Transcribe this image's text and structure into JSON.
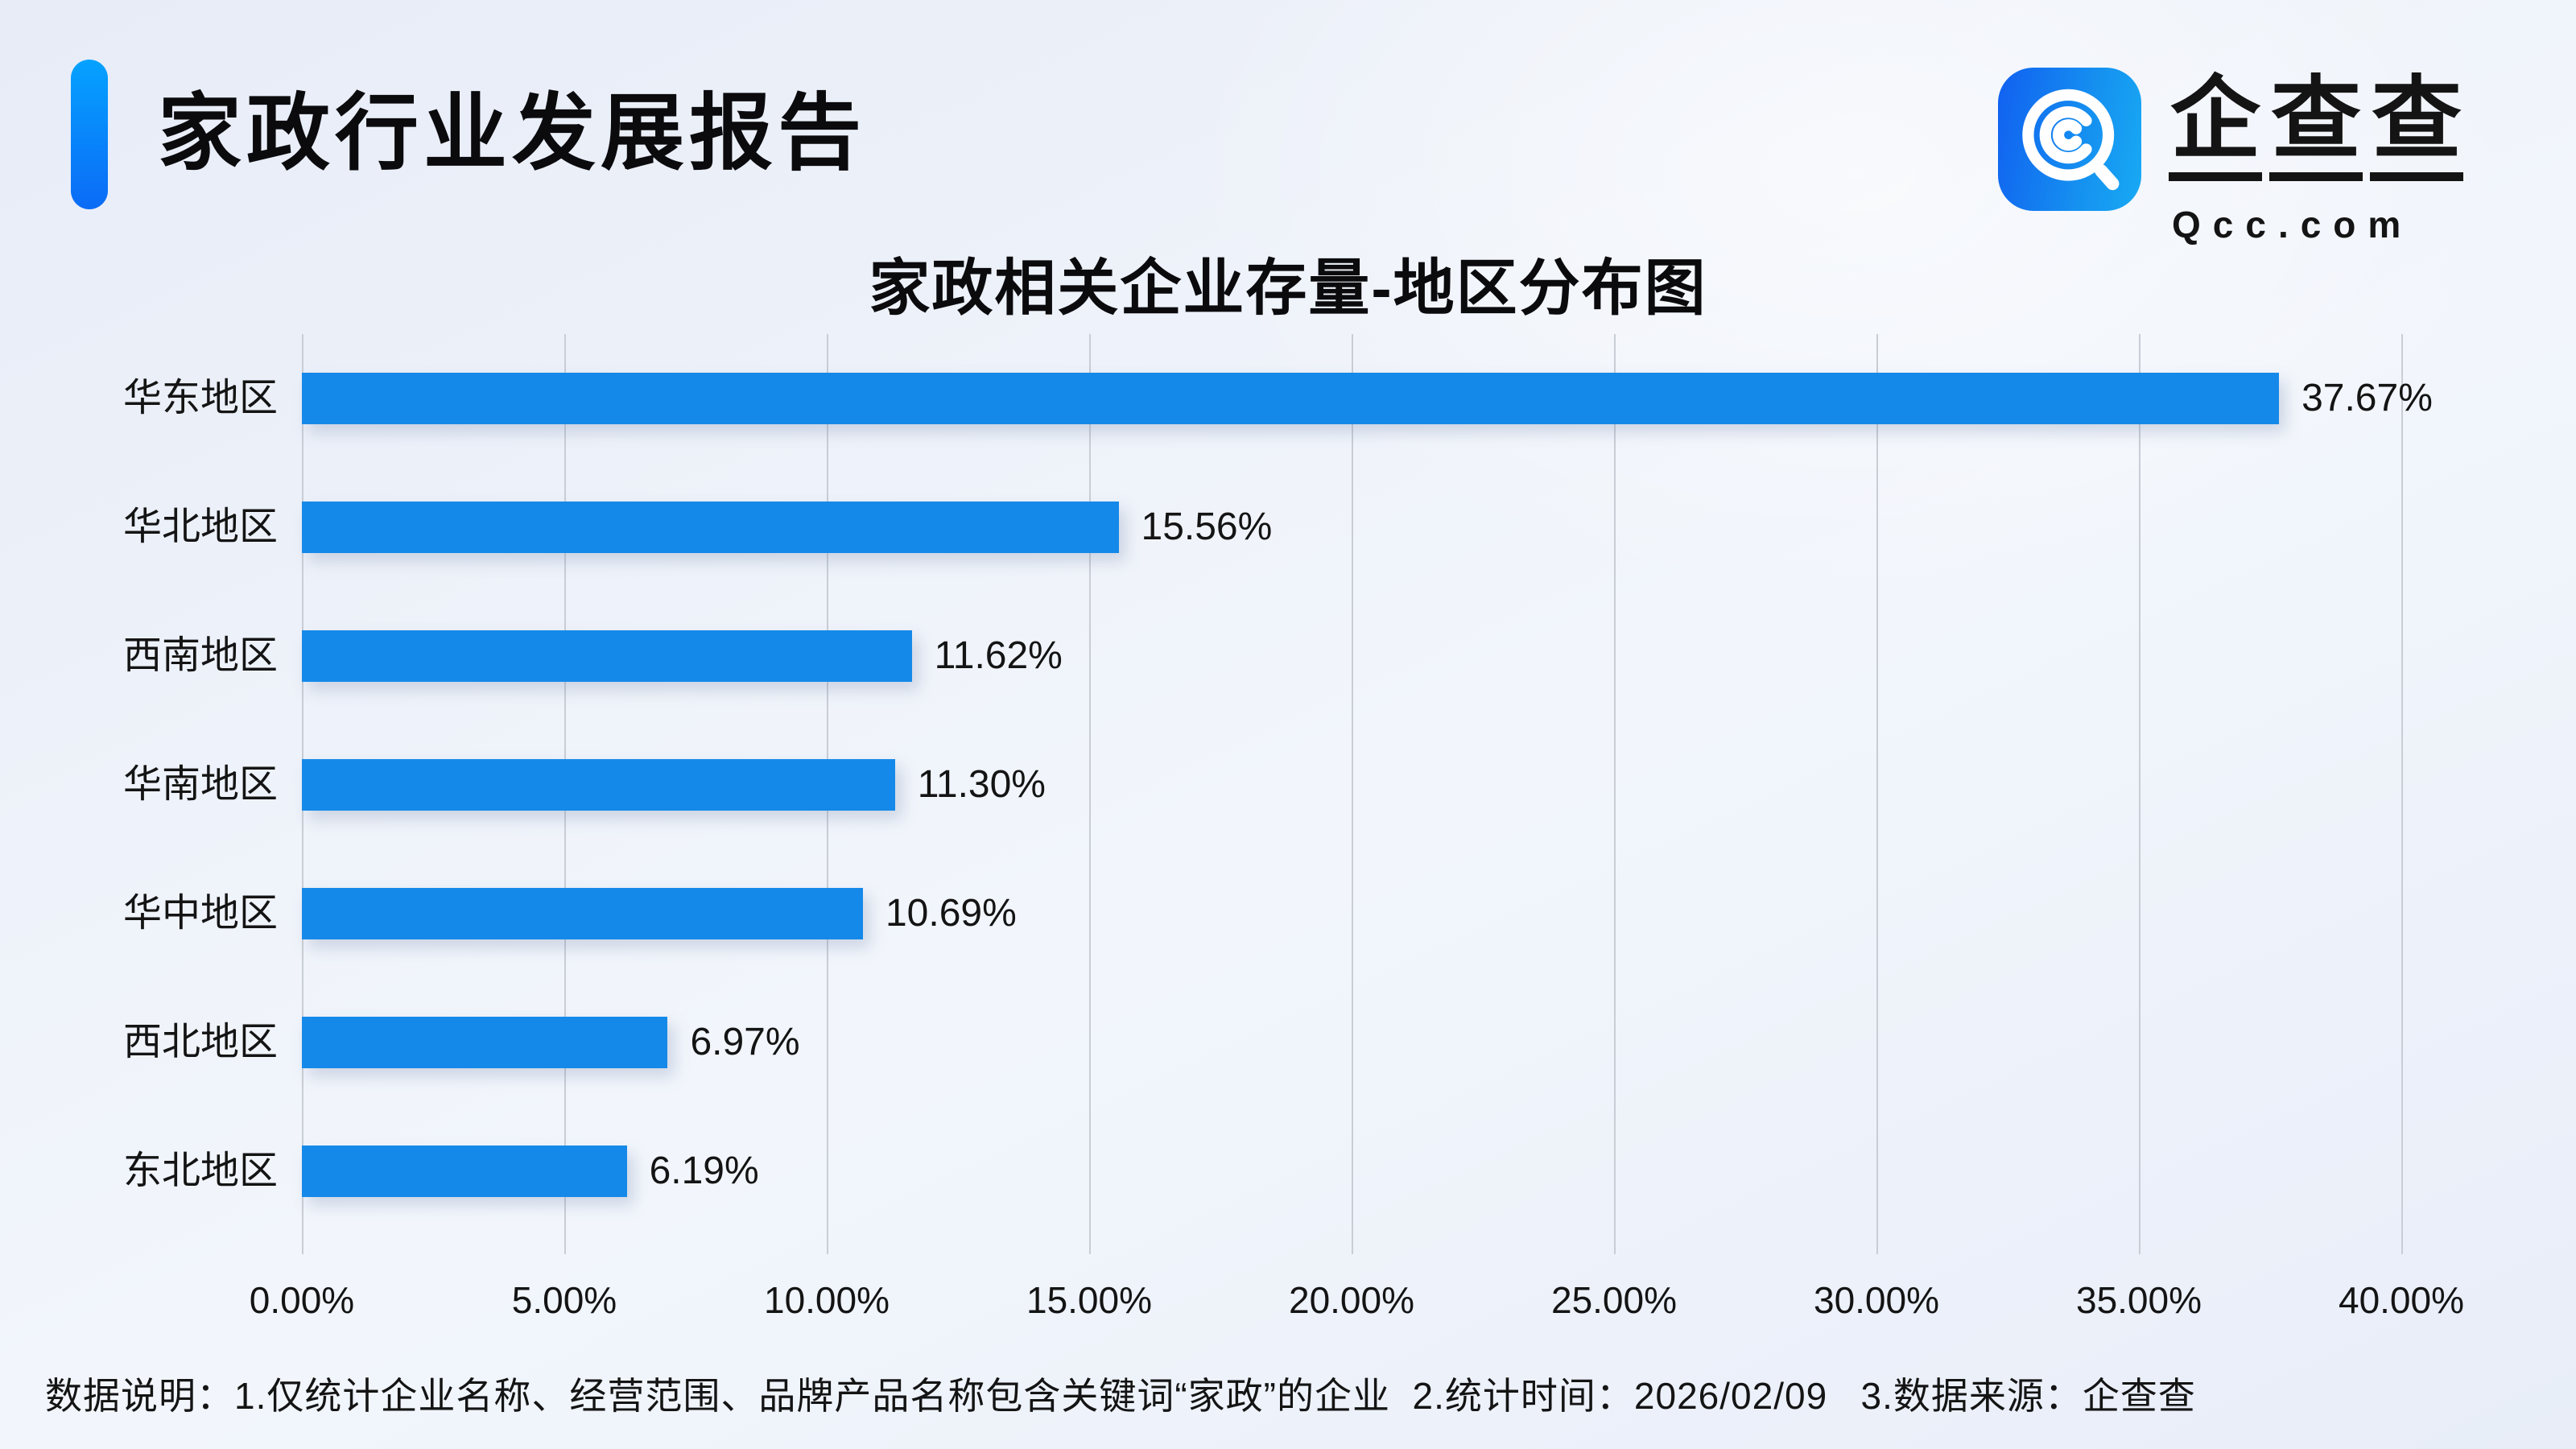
{
  "header": {
    "title": "家政行业发展报告",
    "accent_color_top": "#05A2FF",
    "accent_color_bottom": "#0B6BF6"
  },
  "logo": {
    "brand_chars": [
      "企",
      "查",
      "查"
    ],
    "domain": "Qcc.com",
    "icon": "qcc-magnifier-icon",
    "icon_gradient": [
      "#1160F0",
      "#18AAF4"
    ]
  },
  "chart_data": {
    "type": "bar",
    "orientation": "horizontal",
    "title": "家政相关企业存量-地区分布图",
    "categories": [
      "华东地区",
      "华北地区",
      "西南地区",
      "华南地区",
      "华中地区",
      "西北地区",
      "东北地区"
    ],
    "values": [
      37.67,
      15.56,
      11.62,
      11.3,
      10.69,
      6.97,
      6.19
    ],
    "value_labels": [
      "37.67%",
      "15.56%",
      "11.62%",
      "11.30%",
      "10.69%",
      "6.97%",
      "6.19%"
    ],
    "x_ticks": [
      "0.00%",
      "5.00%",
      "10.00%",
      "15.00%",
      "20.00%",
      "25.00%",
      "30.00%",
      "35.00%",
      "40.00%"
    ],
    "xlim": [
      0,
      40
    ],
    "grid": true,
    "legend": false,
    "bar_color": "#1589E9",
    "gridline_color": "#C9CDD5"
  },
  "footer": {
    "note": "数据说明：1.仅统计企业名称、经营范围、品牌产品名称包含关键词“家政”的企业  2.统计时间：2026/02/09   3.数据来源：企查查"
  }
}
